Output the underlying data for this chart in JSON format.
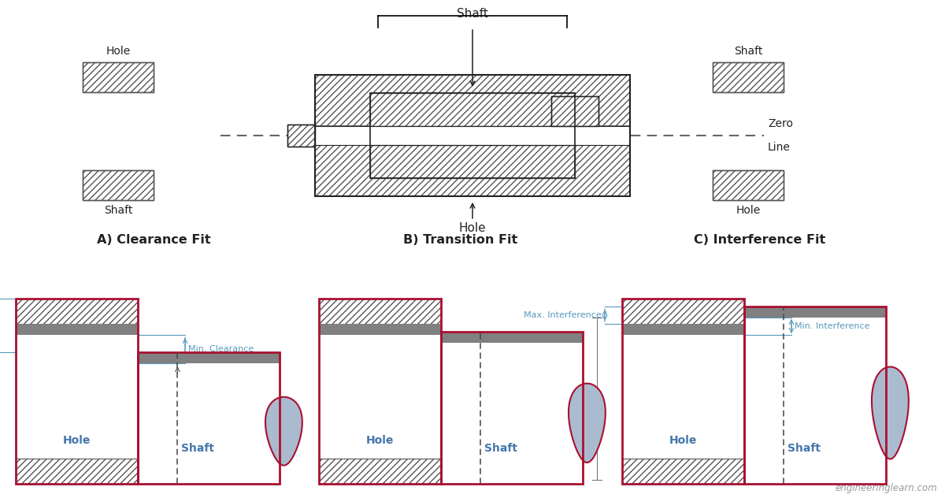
{
  "bg_color": "#ffffff",
  "border_color": "#aa1030",
  "hatch_ec": "#555555",
  "gray_band_color": "#808080",
  "blue_fill": "#aabbd0",
  "dim_color": "#5599bb",
  "zero_line_color": "#555555",
  "black": "#222222",
  "section_titles": [
    "A) Clearance Fit",
    "B) Transition Fit",
    "C) Interference Fit"
  ],
  "watermark": "engineeringlearn.com"
}
